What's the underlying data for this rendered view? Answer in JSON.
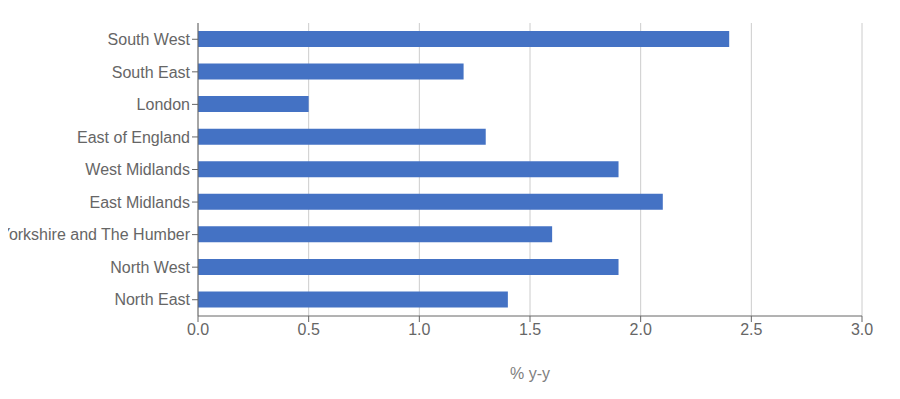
{
  "chart_data": {
    "type": "bar",
    "orientation": "horizontal",
    "categories": [
      "North East",
      "North West",
      "Yorkshire and The Humber",
      "East Midlands",
      "West Midlands",
      "East of England",
      "London",
      "South East",
      "South West"
    ],
    "values": [
      1.4,
      1.9,
      1.6,
      2.1,
      1.9,
      1.3,
      0.5,
      1.2,
      2.4
    ],
    "color": "#4472C4",
    "xlabel": "% y-y",
    "xlim": [
      0.0,
      3.0
    ],
    "xticks": [
      {
        "value": 0,
        "label": "0.0"
      },
      0.5,
      {
        "value": 1,
        "label": "1.0"
      },
      1.5,
      {
        "value": 2,
        "label": "2.0"
      },
      2.5,
      {
        "value": 3,
        "label": "3.0"
      }
    ],
    "grid": true
  }
}
